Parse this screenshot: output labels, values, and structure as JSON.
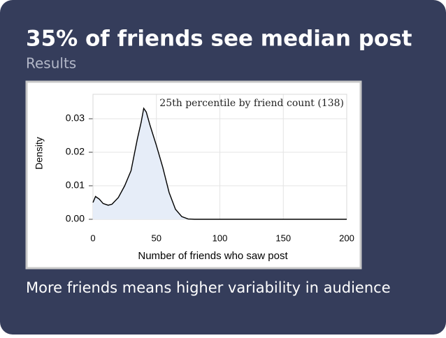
{
  "chart_data": {
    "type": "area",
    "title": "35% of friends see median post",
    "subtitle": "Results",
    "annotation": "25th percentile by friend count (138)",
    "xlabel": "Number of friends who saw post",
    "ylabel": "Density",
    "x": [
      0,
      2,
      5,
      8,
      12,
      15,
      20,
      25,
      30,
      35,
      38,
      40,
      42,
      45,
      50,
      55,
      60,
      65,
      70,
      75,
      80,
      200
    ],
    "values": [
      0.005,
      0.0068,
      0.006,
      0.0047,
      0.0042,
      0.0045,
      0.0065,
      0.01,
      0.0145,
      0.024,
      0.029,
      0.0331,
      0.032,
      0.028,
      0.022,
      0.0155,
      0.008,
      0.003,
      0.0008,
      0.0001,
      0,
      0
    ],
    "color": "#000000",
    "fill": "#e6edf8",
    "xlim": [
      0,
      200
    ],
    "ylim": [
      0,
      0.0373
    ],
    "xticks": [
      0,
      50,
      100,
      150,
      200
    ],
    "yticks": [
      {
        "value": 0,
        "label": "0.00"
      },
      0.01,
      0.02,
      0.03
    ],
    "grid": true,
    "caption": "More friends means higher variability in audience"
  }
}
